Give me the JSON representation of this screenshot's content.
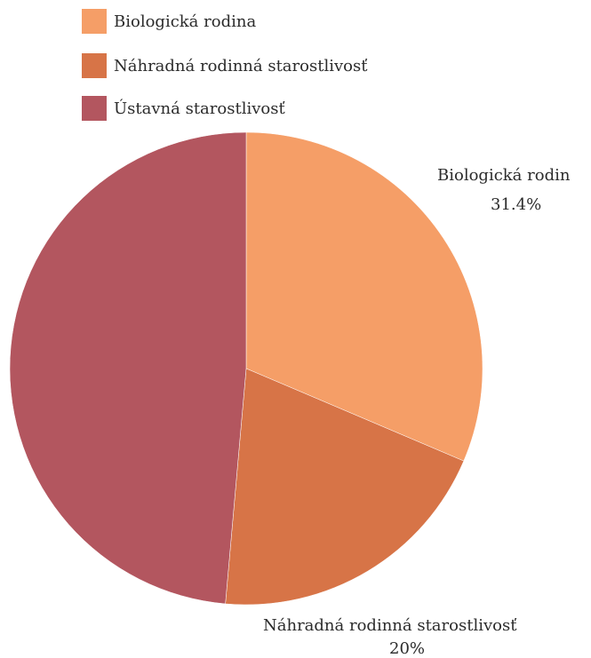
{
  "chart_data": {
    "type": "pie",
    "series": [
      {
        "name": "",
        "slices": [
          {
            "label": "Biologická rodina",
            "value": 31.4,
            "color": "#f59e67"
          },
          {
            "label": "Náhradná rodinná starostlivosť",
            "value": 20,
            "color": "#d77447"
          },
          {
            "label": "Ústavná starostlivosť",
            "value": 48.6,
            "color": "#b3565f"
          }
        ]
      }
    ],
    "legend": {
      "position": "top-left",
      "entries": [
        "Biologická rodina",
        "Náhradná rodinná starostlivosť",
        "Ústavná starostlivosť"
      ]
    },
    "data_labels": [
      {
        "name": "Biologická rodin",
        "value": "31.4%"
      },
      {
        "name": "Náhradná rodinná starostlivosť",
        "value": "20%"
      }
    ]
  }
}
